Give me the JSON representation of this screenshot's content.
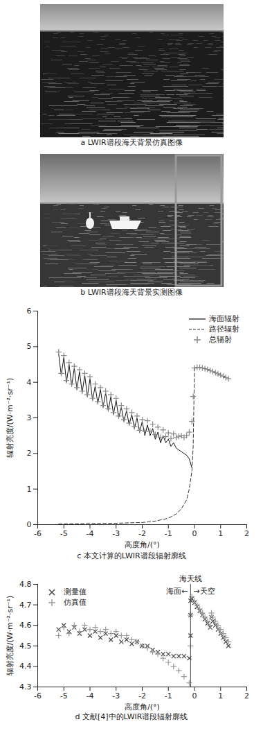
{
  "images": [
    {
      "caption": "a LWIR谱段海天背景仿真图像"
    },
    {
      "caption": "b LWIR谱段海天背景实测图像"
    }
  ],
  "chart_data": [
    {
      "type": "line",
      "caption": "c 本文计算的LWIR谱段辐射廓线",
      "x_label": "高度角/(°)",
      "y_label": "辐射亮度/(W·m⁻²·sr⁻¹)",
      "xlim": [
        -6,
        2
      ],
      "xticks": [
        -6,
        -5,
        -4,
        -3,
        -2,
        -1,
        0,
        1,
        2
      ],
      "ylim": [
        0,
        6
      ],
      "yticks": [
        0,
        1,
        2,
        3,
        4,
        5,
        6
      ],
      "legend": "top-right",
      "series": [
        {
          "name": "海面辐射",
          "type": "line",
          "line_style": "solid",
          "color": "#111111",
          "x": [
            -5.2,
            -5.1,
            -5.0,
            -4.9,
            -4.8,
            -4.7,
            -4.6,
            -4.5,
            -4.4,
            -4.3,
            -4.2,
            -4.1,
            -4.0,
            -3.9,
            -3.8,
            -3.7,
            -3.6,
            -3.5,
            -3.4,
            -3.3,
            -3.2,
            -3.1,
            -3.0,
            -2.9,
            -2.8,
            -2.7,
            -2.6,
            -2.5,
            -2.4,
            -2.3,
            -2.2,
            -2.1,
            -2.0,
            -1.9,
            -1.8,
            -1.7,
            -1.6,
            -1.5,
            -1.4,
            -1.3,
            -1.2,
            -1.1,
            -1.0,
            -0.9,
            -0.8,
            -0.7,
            -0.6,
            -0.5,
            -0.4,
            -0.3,
            -0.2,
            -0.1
          ],
          "values": [
            4.8,
            4.2,
            4.7,
            4.0,
            4.5,
            3.9,
            4.4,
            3.8,
            4.3,
            3.7,
            4.2,
            3.6,
            4.1,
            3.5,
            3.9,
            3.4,
            3.8,
            3.3,
            3.7,
            3.2,
            3.6,
            3.1,
            3.5,
            3.0,
            3.3,
            2.9,
            3.2,
            2.8,
            3.1,
            2.7,
            3.0,
            2.6,
            2.9,
            2.5,
            2.8,
            2.5,
            2.7,
            2.4,
            2.6,
            2.3,
            2.5,
            2.3,
            2.4,
            2.2,
            2.3,
            2.15,
            2.1,
            2.05,
            2.0,
            1.95,
            1.85,
            1.6
          ]
        },
        {
          "name": "路径辐射",
          "type": "line",
          "line_style": "dashed",
          "color": "#333333",
          "x": [
            -5.2,
            -4,
            -3,
            -2,
            -1.5,
            -1,
            -0.7,
            -0.5,
            -0.3,
            -0.2,
            -0.1,
            -0.05,
            0,
            0.2,
            0.4,
            0.6,
            0.8,
            1.0,
            1.2,
            1.3
          ],
          "values": [
            0.02,
            0.03,
            0.04,
            0.06,
            0.1,
            0.18,
            0.3,
            0.45,
            0.7,
            1.0,
            1.5,
            2.2,
            4.4,
            4.42,
            4.38,
            4.33,
            4.27,
            4.2,
            4.13,
            4.1
          ]
        },
        {
          "name": "总辐射",
          "type": "scatter",
          "marker": "plus",
          "color": "#888888",
          "x": [
            -5.2,
            -5.1,
            -5.0,
            -4.9,
            -4.8,
            -4.7,
            -4.6,
            -4.5,
            -4.4,
            -4.3,
            -4.2,
            -4.1,
            -4.0,
            -3.9,
            -3.8,
            -3.7,
            -3.6,
            -3.5,
            -3.4,
            -3.3,
            -3.2,
            -3.1,
            -3.0,
            -2.9,
            -2.8,
            -2.7,
            -2.6,
            -2.5,
            -2.4,
            -2.3,
            -2.2,
            -2.1,
            -2.0,
            -1.9,
            -1.8,
            -1.7,
            -1.6,
            -1.5,
            -1.4,
            -1.3,
            -1.2,
            -1.1,
            -1.0,
            -0.9,
            -0.8,
            -0.7,
            -0.6,
            -0.5,
            -0.4,
            -0.3,
            -0.2,
            -0.1,
            -0.05,
            0,
            0.1,
            0.2,
            0.3,
            0.4,
            0.5,
            0.6,
            0.7,
            0.8,
            0.9,
            1.0,
            1.1,
            1.2,
            1.3
          ],
          "values": [
            4.85,
            4.25,
            4.75,
            4.05,
            4.55,
            3.95,
            4.45,
            3.85,
            4.35,
            3.75,
            4.25,
            3.65,
            4.15,
            3.55,
            3.95,
            3.45,
            3.85,
            3.35,
            3.75,
            3.25,
            3.65,
            3.15,
            3.55,
            3.05,
            3.35,
            2.95,
            3.25,
            2.85,
            3.15,
            2.75,
            3.05,
            2.65,
            2.95,
            2.62,
            2.92,
            2.62,
            2.82,
            2.53,
            2.74,
            2.45,
            2.66,
            2.47,
            2.58,
            2.42,
            2.55,
            2.45,
            2.48,
            2.5,
            2.45,
            2.5,
            2.6,
            2.9,
            3.6,
            4.4,
            4.42,
            4.42,
            4.4,
            4.38,
            4.36,
            4.33,
            4.3,
            4.27,
            4.24,
            4.2,
            4.17,
            4.13,
            4.1
          ]
        }
      ]
    },
    {
      "type": "scatter",
      "caption": "d 文献[4]中的LWIR谱段辐射廓线",
      "x_label": "高度角/(°)",
      "y_label": "辐射亮度/(W·m⁻²·sr⁻¹)",
      "xlim": [
        -6,
        2
      ],
      "xticks": [
        -6,
        -5,
        -4,
        -3,
        -2,
        -1,
        0,
        1,
        2
      ],
      "ylim": [
        4.3,
        4.8
      ],
      "yticks": [
        4.3,
        4.4,
        4.5,
        4.6,
        4.7,
        4.8
      ],
      "legend": "top-left",
      "vline": -0.15,
      "annotations": [
        "海天线",
        "海面←",
        "→天空"
      ],
      "x": [
        -5.2,
        -5.0,
        -4.8,
        -4.6,
        -4.4,
        -4.2,
        -4.0,
        -3.8,
        -3.6,
        -3.4,
        -3.2,
        -3.0,
        -2.8,
        -2.6,
        -2.4,
        -2.2,
        -2.0,
        -1.8,
        -1.6,
        -1.4,
        -1.2,
        -1.0,
        -0.8,
        -0.6,
        -0.4,
        -0.2,
        -0.15,
        -0.15,
        -0.15,
        -0.1,
        0,
        0.1,
        0.2,
        0.3,
        0.4,
        0.5,
        0.6,
        0.65,
        0.7,
        0.8,
        0.9,
        1.0,
        1.1,
        1.2,
        1.3
      ],
      "series": [
        {
          "name": "测量值",
          "marker": "times",
          "color": "#444444",
          "values": [
            4.58,
            4.6,
            4.57,
            4.59,
            4.56,
            4.58,
            4.55,
            4.57,
            4.54,
            4.56,
            4.53,
            4.55,
            4.52,
            4.53,
            4.51,
            4.52,
            4.5,
            4.5,
            4.48,
            4.47,
            4.46,
            4.46,
            4.45,
            4.45,
            4.45,
            4.44,
            4.55,
            4.65,
            4.72,
            4.73,
            4.71,
            4.69,
            4.67,
            4.65,
            4.63,
            4.61,
            4.59,
            4.64,
            4.62,
            4.6,
            4.58,
            4.56,
            4.54,
            4.52,
            4.5
          ]
        },
        {
          "name": "仿真值",
          "marker": "plus",
          "color": "#9a9a9a",
          "values": [
            4.55,
            4.59,
            4.56,
            4.6,
            4.57,
            4.6,
            4.58,
            4.59,
            4.57,
            4.58,
            4.56,
            4.57,
            4.55,
            4.55,
            4.53,
            4.52,
            4.5,
            4.49,
            4.47,
            4.46,
            4.44,
            4.42,
            4.4,
            4.38,
            4.35,
            4.32,
            4.3,
            4.5,
            4.65,
            4.74,
            4.72,
            4.7,
            4.68,
            4.66,
            4.64,
            4.62,
            4.6,
            4.66,
            4.64,
            4.62,
            4.6,
            4.58,
            4.56,
            4.54,
            4.52
          ]
        }
      ]
    }
  ]
}
